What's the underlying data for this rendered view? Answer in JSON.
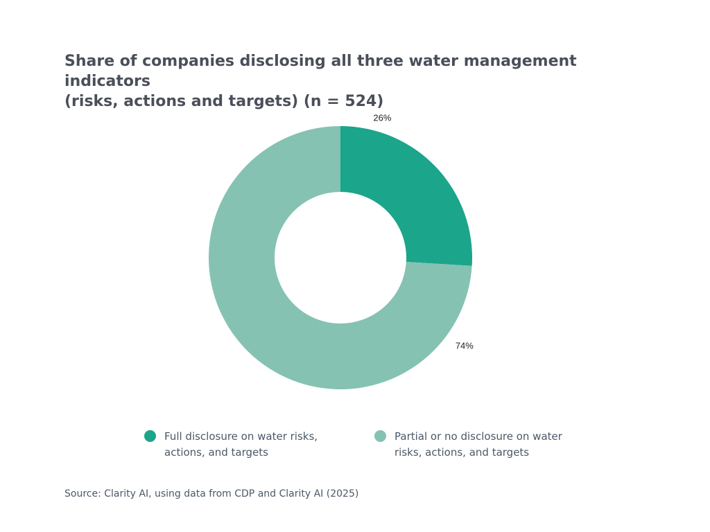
{
  "chart_data": {
    "type": "pie",
    "title": "Share of companies disclosing all three water management indicators\n(risks, actions and targets) (n = 524)",
    "donut": true,
    "slices": [
      {
        "label_line1": "Full disclosure on water risks,",
        "label_line2": "actions, and targets",
        "value": 26,
        "value_label": "26%",
        "color": "#1ba58a"
      },
      {
        "label_line1": "Partial or no disclosure on water",
        "label_line2": "risks, actions, and targets",
        "value": 74,
        "value_label": "74%",
        "color": "#85c2b2"
      }
    ],
    "legend_position": "bottom"
  },
  "source": "Source: Clarity AI, using data from CDP and Clarity AI (2025)"
}
